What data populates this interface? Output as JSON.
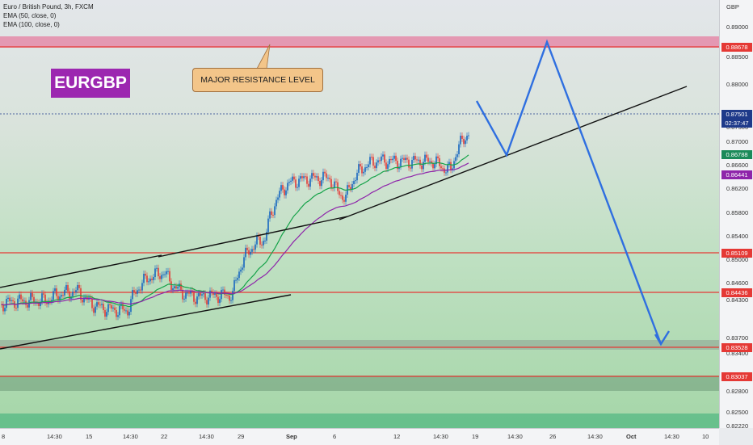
{
  "legend": {
    "title": "Euro / British Pound, 3h, FXCM",
    "ema50": "EMA (50, close, 0)",
    "ema100": "EMA (100, close, 0)"
  },
  "symbol_badge": "EURGBP",
  "annotation": "MAJOR RESISTANCE LEVEL",
  "currency": "GBP",
  "price_ticks": [
    "0.89000",
    "0.88500",
    "0.88000",
    "0.87500",
    "0.87000",
    "0.86600",
    "0.86200",
    "0.85800",
    "0.85400",
    "0.85000",
    "0.84600",
    "0.84300",
    "0.83700",
    "0.83400",
    "0.82800",
    "0.82500",
    "0.82220"
  ],
  "price_labels": [
    {
      "text": "0.88678",
      "color": "#e53935"
    },
    {
      "text": "0.87501",
      "color": "#1e3a8a"
    },
    {
      "text": "02:37:47",
      "color": "#1e3a8a"
    },
    {
      "text": "0.86788",
      "color": "#1b8a5a"
    },
    {
      "text": "0.86441",
      "color": "#8e24aa"
    },
    {
      "text": "0.85109",
      "color": "#e53935"
    },
    {
      "text": "0.84436",
      "color": "#e53935"
    },
    {
      "text": "0.83528",
      "color": "#e53935"
    },
    {
      "text": "0.83037",
      "color": "#e53935"
    }
  ],
  "time_ticks": [
    "8",
    "14:30",
    "15",
    "14:30",
    "22",
    "14:30",
    "29",
    "Sep",
    "6",
    "12",
    "14:30",
    "19",
    "14:30",
    "26",
    "14:30",
    "Oct",
    "14:30",
    "10"
  ],
  "colors": {
    "up": "#1565c0",
    "down": "#e53935",
    "ema50": "#16a34a",
    "ema100": "#8e24aa",
    "projection": "#2f6fe0",
    "trend": "#111111"
  }
}
